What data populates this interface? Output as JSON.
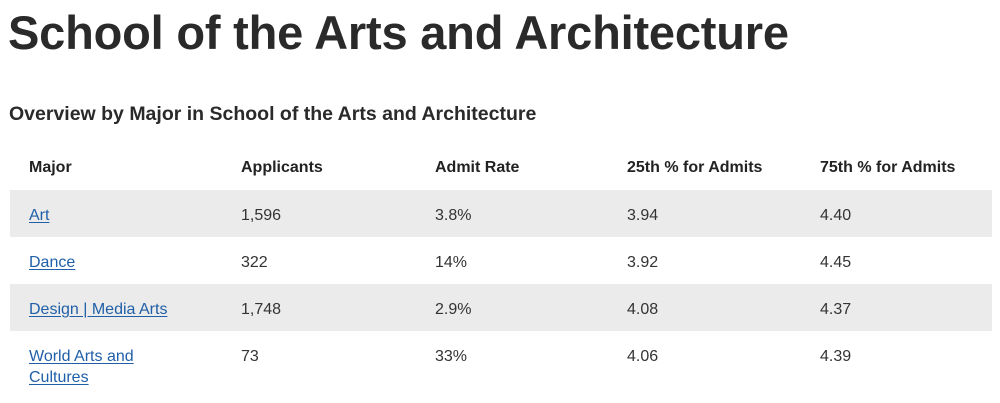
{
  "page": {
    "title": "School of the Arts and Architecture",
    "section_heading": "Overview by Major in School of the Arts and Architecture"
  },
  "table": {
    "headers": {
      "major": "Major",
      "applicants": "Applicants",
      "admit_rate": "Admit Rate",
      "p25": "25th % for Admits",
      "p75": "75th % for Admits"
    },
    "rows": [
      {
        "major": "Art",
        "applicants": "1,596",
        "admit_rate": "3.8%",
        "p25": "3.94",
        "p75": "4.40"
      },
      {
        "major": "Dance",
        "applicants": "322",
        "admit_rate": "14%",
        "p25": "3.92",
        "p75": "4.45"
      },
      {
        "major": "Design | Media Arts",
        "applicants": "1,748",
        "admit_rate": "2.9%",
        "p25": "4.08",
        "p75": "4.37"
      },
      {
        "major": "World Arts and Cultures",
        "applicants": "73",
        "admit_rate": "33%",
        "p25": "4.06",
        "p75": "4.39"
      }
    ]
  },
  "colors": {
    "link": "#1f5fa8",
    "row_shade": "#ebebeb",
    "text": "#222222"
  }
}
